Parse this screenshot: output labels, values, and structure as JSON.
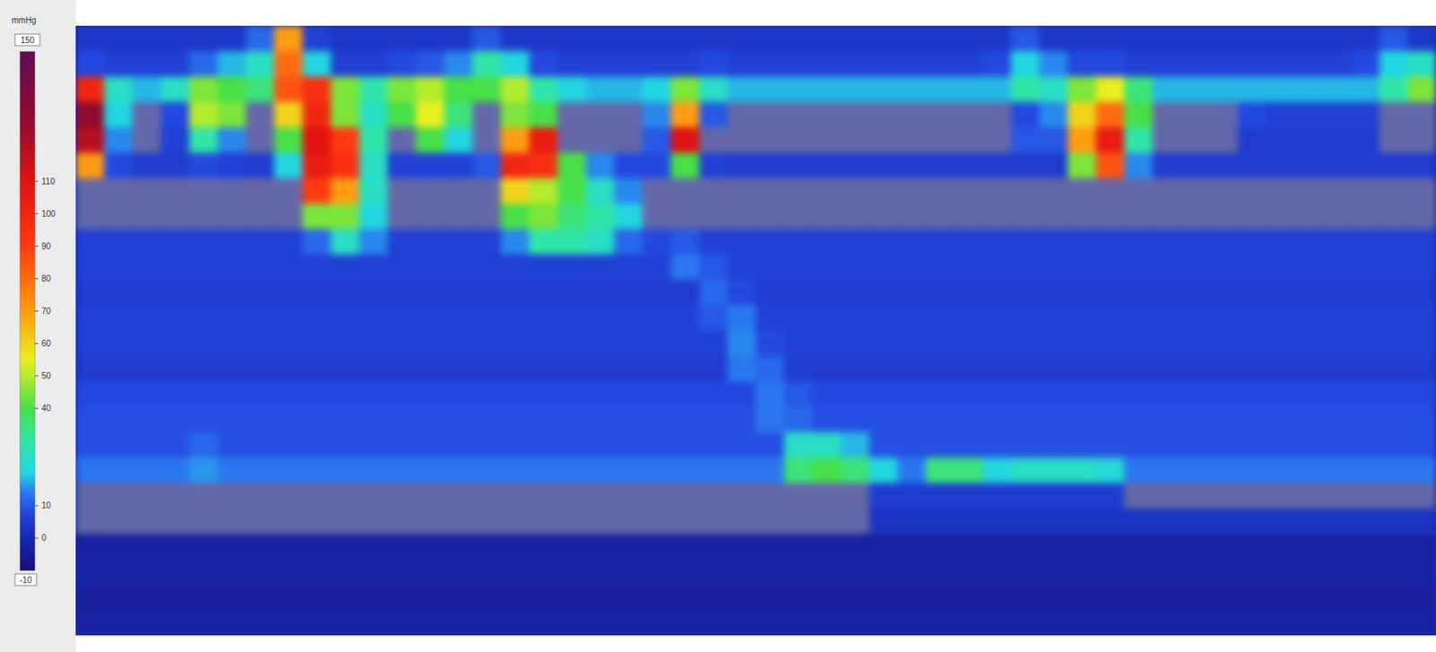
{
  "chart_data": {
    "type": "heatmap",
    "tick_labels": false,
    "colorbar": {
      "title": "mmHg",
      "range": [
        -10,
        150
      ],
      "ticks": [
        0,
        10,
        40,
        50,
        60,
        70,
        80,
        90,
        100,
        110
      ]
    },
    "cells": [
      [
        4,
        4,
        4,
        4,
        4,
        4,
        12,
        70,
        6,
        4,
        4,
        4,
        4,
        4,
        10,
        4,
        4,
        4,
        4,
        4,
        4,
        4,
        4,
        4,
        4,
        4,
        4,
        4,
        4,
        4,
        4,
        4,
        4,
        10,
        4,
        4,
        4,
        4,
        4,
        4,
        4,
        4,
        4,
        4,
        4,
        4,
        10,
        4
      ],
      [
        8,
        6,
        6,
        6,
        12,
        18,
        25,
        80,
        20,
        6,
        6,
        8,
        10,
        15,
        30,
        20,
        8,
        6,
        6,
        6,
        6,
        6,
        8,
        6,
        6,
        6,
        6,
        6,
        6,
        6,
        6,
        6,
        8,
        20,
        15,
        8,
        8,
        6,
        6,
        6,
        6,
        6,
        6,
        6,
        6,
        8,
        20,
        25
      ],
      [
        100,
        25,
        18,
        25,
        45,
        40,
        35,
        85,
        95,
        45,
        30,
        45,
        50,
        40,
        40,
        50,
        30,
        20,
        18,
        18,
        20,
        45,
        25,
        18,
        18,
        18,
        18,
        18,
        18,
        18,
        18,
        18,
        18,
        30,
        25,
        45,
        55,
        35,
        18,
        18,
        18,
        18,
        18,
        18,
        18,
        18,
        30,
        45
      ],
      [
        130,
        20,
        null,
        8,
        50,
        45,
        null,
        60,
        100,
        45,
        25,
        40,
        55,
        35,
        null,
        45,
        40,
        null,
        null,
        null,
        15,
        70,
        10,
        null,
        null,
        null,
        null,
        null,
        null,
        null,
        null,
        null,
        null,
        8,
        15,
        60,
        80,
        40,
        null,
        null,
        null,
        8,
        6,
        6,
        6,
        6,
        null,
        null
      ],
      [
        120,
        15,
        null,
        6,
        30,
        15,
        null,
        40,
        110,
        90,
        30,
        null,
        40,
        20,
        null,
        70,
        105,
        null,
        null,
        null,
        10,
        110,
        null,
        null,
        null,
        null,
        null,
        null,
        null,
        null,
        null,
        null,
        null,
        10,
        10,
        70,
        105,
        30,
        null,
        null,
        null,
        5,
        5,
        5,
        5,
        5,
        null,
        null
      ],
      [
        70,
        8,
        5,
        5,
        8,
        6,
        5,
        20,
        105,
        95,
        25,
        6,
        6,
        6,
        10,
        100,
        95,
        40,
        15,
        8,
        8,
        40,
        6,
        5,
        5,
        5,
        5,
        5,
        5,
        5,
        5,
        5,
        5,
        5,
        5,
        45,
        85,
        15,
        5,
        5,
        5,
        5,
        5,
        5,
        5,
        5,
        5,
        5
      ],
      [
        null,
        null,
        null,
        null,
        null,
        null,
        null,
        null,
        90,
        70,
        25,
        null,
        null,
        null,
        null,
        60,
        50,
        40,
        25,
        15,
        null,
        null,
        null,
        null,
        null,
        null,
        null,
        null,
        null,
        null,
        null,
        null,
        null,
        null,
        null,
        null,
        null,
        null,
        null,
        null,
        null,
        null,
        null,
        null,
        null,
        null,
        null,
        null
      ],
      [
        null,
        null,
        null,
        null,
        null,
        null,
        null,
        null,
        45,
        45,
        20,
        null,
        null,
        null,
        null,
        40,
        45,
        35,
        30,
        20,
        null,
        null,
        null,
        null,
        null,
        null,
        null,
        null,
        null,
        null,
        null,
        null,
        null,
        null,
        null,
        null,
        null,
        null,
        null,
        null,
        null,
        null,
        null,
        null,
        null,
        null,
        null,
        null
      ],
      [
        6,
        6,
        6,
        6,
        6,
        6,
        6,
        6,
        12,
        25,
        15,
        6,
        6,
        6,
        6,
        15,
        30,
        30,
        25,
        12,
        8,
        10,
        6,
        6,
        6,
        6,
        6,
        6,
        6,
        6,
        6,
        6,
        6,
        6,
        6,
        6,
        6,
        6,
        6,
        6,
        6,
        6,
        6,
        6,
        6,
        6,
        6,
        6
      ],
      [
        6,
        6,
        6,
        6,
        6,
        6,
        6,
        6,
        6,
        6,
        6,
        6,
        6,
        6,
        6,
        6,
        6,
        6,
        6,
        6,
        6,
        14,
        10,
        6,
        6,
        6,
        6,
        6,
        6,
        6,
        6,
        6,
        6,
        6,
        6,
        6,
        6,
        6,
        6,
        6,
        6,
        6,
        6,
        6,
        6,
        6,
        6,
        6
      ],
      [
        5,
        5,
        5,
        5,
        5,
        5,
        5,
        5,
        5,
        5,
        5,
        5,
        5,
        5,
        5,
        5,
        5,
        5,
        5,
        5,
        5,
        5,
        12,
        8,
        5,
        5,
        5,
        5,
        5,
        5,
        5,
        5,
        5,
        5,
        5,
        5,
        5,
        5,
        5,
        5,
        5,
        5,
        5,
        5,
        5,
        5,
        5,
        5
      ],
      [
        6,
        6,
        6,
        6,
        6,
        6,
        6,
        6,
        6,
        6,
        6,
        6,
        6,
        6,
        6,
        6,
        6,
        6,
        6,
        6,
        6,
        6,
        10,
        14,
        6,
        6,
        6,
        6,
        6,
        6,
        6,
        6,
        6,
        6,
        6,
        6,
        6,
        6,
        6,
        6,
        6,
        6,
        6,
        6,
        6,
        6,
        6,
        6
      ],
      [
        6,
        6,
        6,
        6,
        6,
        6,
        6,
        6,
        6,
        6,
        6,
        6,
        6,
        6,
        6,
        6,
        6,
        6,
        6,
        6,
        6,
        6,
        6,
        15,
        8,
        6,
        6,
        6,
        6,
        6,
        6,
        6,
        6,
        6,
        6,
        6,
        6,
        6,
        6,
        6,
        6,
        6,
        6,
        6,
        6,
        6,
        6,
        6
      ],
      [
        5,
        5,
        5,
        5,
        5,
        5,
        5,
        5,
        5,
        5,
        5,
        5,
        5,
        5,
        5,
        5,
        5,
        5,
        5,
        5,
        5,
        5,
        5,
        14,
        12,
        5,
        5,
        5,
        5,
        5,
        5,
        5,
        5,
        5,
        5,
        5,
        5,
        5,
        5,
        5,
        5,
        5,
        5,
        5,
        5,
        5,
        5,
        5
      ],
      [
        8,
        8,
        8,
        8,
        8,
        8,
        8,
        8,
        8,
        8,
        8,
        8,
        8,
        8,
        8,
        8,
        8,
        8,
        8,
        8,
        8,
        8,
        8,
        8,
        14,
        10,
        8,
        8,
        8,
        8,
        8,
        8,
        8,
        8,
        8,
        8,
        8,
        8,
        8,
        8,
        8,
        8,
        8,
        8,
        8,
        8,
        8,
        8
      ],
      [
        9,
        9,
        9,
        9,
        9,
        9,
        9,
        9,
        9,
        9,
        9,
        9,
        9,
        9,
        9,
        9,
        9,
        9,
        9,
        9,
        9,
        9,
        9,
        9,
        14,
        12,
        9,
        9,
        9,
        9,
        9,
        9,
        9,
        9,
        9,
        9,
        9,
        9,
        9,
        9,
        9,
        9,
        9,
        9,
        9,
        9,
        9,
        9
      ],
      [
        9,
        9,
        9,
        9,
        12,
        9,
        9,
        9,
        9,
        9,
        9,
        9,
        9,
        9,
        9,
        9,
        9,
        9,
        9,
        9,
        9,
        9,
        9,
        9,
        9,
        25,
        25,
        18,
        9,
        9,
        9,
        9,
        9,
        9,
        9,
        9,
        9,
        9,
        9,
        9,
        9,
        9,
        9,
        9,
        9,
        9,
        9,
        9
      ],
      [
        14,
        14,
        14,
        14,
        16,
        14,
        14,
        14,
        14,
        14,
        14,
        14,
        14,
        14,
        14,
        14,
        14,
        14,
        14,
        14,
        14,
        14,
        14,
        14,
        14,
        35,
        40,
        35,
        20,
        14,
        35,
        35,
        20,
        25,
        25,
        25,
        22,
        14,
        14,
        14,
        14,
        14,
        14,
        14,
        14,
        14,
        14,
        14
      ],
      [
        null,
        null,
        null,
        null,
        null,
        null,
        null,
        null,
        null,
        null,
        null,
        null,
        null,
        null,
        null,
        null,
        null,
        null,
        null,
        null,
        null,
        null,
        null,
        null,
        null,
        null,
        null,
        null,
        5,
        5,
        5,
        5,
        5,
        5,
        5,
        5,
        5,
        null,
        null,
        null,
        null,
        null,
        null,
        null,
        null,
        null,
        null,
        null
      ],
      [
        null,
        null,
        null,
        null,
        null,
        null,
        null,
        null,
        null,
        null,
        null,
        null,
        null,
        null,
        null,
        null,
        null,
        null,
        null,
        null,
        null,
        null,
        null,
        null,
        null,
        null,
        null,
        null,
        3,
        3,
        3,
        3,
        3,
        3,
        3,
        3,
        3,
        3,
        3,
        3,
        3,
        3,
        3,
        3,
        3,
        3,
        3,
        3
      ],
      [
        -3,
        -3,
        -3,
        -3,
        -3,
        -3,
        -3,
        -3,
        -3,
        -3,
        -3,
        -3,
        -3,
        -3,
        -3,
        -3,
        -3,
        -3,
        -3,
        -3,
        -3,
        -3,
        -3,
        -3,
        -3,
        -3,
        -3,
        -3,
        -3,
        -3,
        -3,
        -3,
        -3,
        -3,
        -3,
        -3,
        -3,
        -3,
        -3,
        -3,
        -3,
        -3,
        -3,
        -3,
        -3,
        -3,
        -3,
        -3
      ],
      [
        -2,
        -2,
        -2,
        -2,
        -2,
        -2,
        -2,
        -2,
        -2,
        -2,
        -2,
        -2,
        -2,
        -2,
        -2,
        -2,
        -2,
        -2,
        -2,
        -2,
        -2,
        -2,
        -2,
        -2,
        -2,
        -2,
        -2,
        -2,
        -2,
        -2,
        -2,
        -2,
        -2,
        -2,
        -2,
        -2,
        -2,
        -2,
        -2,
        -2,
        -2,
        -2,
        -2,
        -2,
        -2,
        -2,
        -2,
        -2
      ],
      [
        -4,
        -4,
        -4,
        -4,
        -4,
        -4,
        -4,
        -4,
        -4,
        -4,
        -4,
        -4,
        -4,
        -4,
        -4,
        -4,
        -4,
        -4,
        -4,
        -4,
        -4,
        -4,
        -4,
        -4,
        -4,
        -4,
        -4,
        -4,
        -4,
        -4,
        -4,
        -4,
        -4,
        -4,
        -4,
        -4,
        -4,
        -4,
        -4,
        -4,
        -4,
        -4,
        -4,
        -4,
        -4,
        -4,
        -4,
        -4
      ],
      [
        -3,
        -3,
        -3,
        -3,
        -3,
        -3,
        -3,
        -3,
        -3,
        -3,
        -3,
        -3,
        -3,
        -3,
        -3,
        -3,
        -3,
        -3,
        -3,
        -3,
        -3,
        -3,
        -3,
        -3,
        -3,
        -3,
        -3,
        -3,
        -3,
        -3,
        -3,
        -3,
        -3,
        -3,
        -3,
        -3,
        -3,
        -3,
        -3,
        -3,
        -3,
        -3,
        -3,
        -3,
        -3,
        -3,
        -3,
        -3
      ]
    ]
  }
}
